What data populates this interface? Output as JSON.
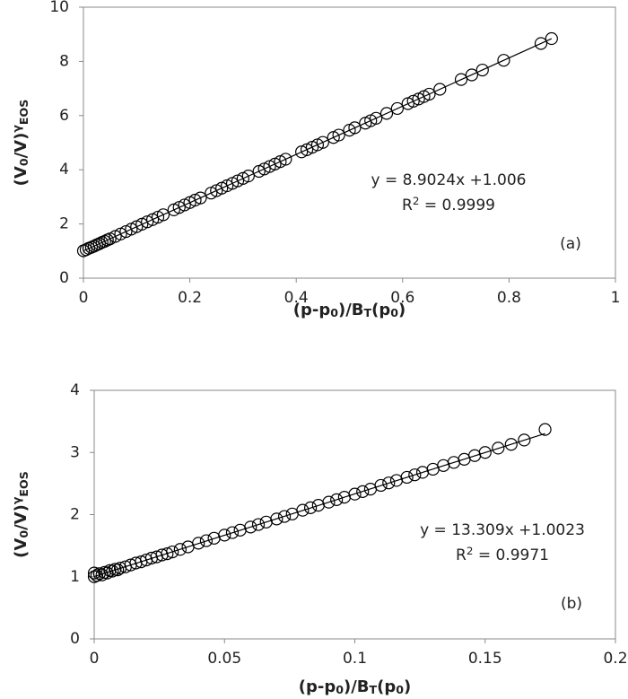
{
  "chart_data": [
    {
      "type": "scatter",
      "x": [
        0,
        0.005,
        0.01,
        0.015,
        0.02,
        0.025,
        0.03,
        0.035,
        0.04,
        0.045,
        0.05,
        0.06,
        0.07,
        0.08,
        0.09,
        0.1,
        0.11,
        0.12,
        0.13,
        0.14,
        0.15,
        0.17,
        0.18,
        0.19,
        0.2,
        0.21,
        0.22,
        0.24,
        0.25,
        0.26,
        0.27,
        0.28,
        0.29,
        0.3,
        0.31,
        0.33,
        0.34,
        0.35,
        0.36,
        0.37,
        0.38,
        0.41,
        0.42,
        0.43,
        0.44,
        0.45,
        0.47,
        0.48,
        0.5,
        0.51,
        0.53,
        0.54,
        0.55,
        0.57,
        0.59,
        0.61,
        0.62,
        0.63,
        0.64,
        0.65,
        0.67,
        0.71,
        0.73,
        0.75,
        0.79,
        0.86,
        0.88
      ],
      "values": [
        1.01,
        1.05,
        1.1,
        1.14,
        1.18,
        1.23,
        1.27,
        1.32,
        1.36,
        1.41,
        1.45,
        1.54,
        1.63,
        1.72,
        1.81,
        1.9,
        1.99,
        2.08,
        2.16,
        2.25,
        2.34,
        2.52,
        2.61,
        2.7,
        2.79,
        2.88,
        2.96,
        3.14,
        3.23,
        3.32,
        3.41,
        3.5,
        3.59,
        3.68,
        3.77,
        3.94,
        4.03,
        4.12,
        4.21,
        4.3,
        4.39,
        4.66,
        4.74,
        4.83,
        4.92,
        5.01,
        5.19,
        5.28,
        5.46,
        5.55,
        5.72,
        5.81,
        5.9,
        6.08,
        6.26,
        6.44,
        6.53,
        6.61,
        6.7,
        6.79,
        6.97,
        7.33,
        7.5,
        7.68,
        8.04,
        8.66,
        8.84
      ],
      "color": "#000000",
      "trendline": {
        "slope": 8.9024,
        "intercept": 1.006,
        "x_range": [
          0,
          0.88
        ]
      },
      "equation": "y = 8.9024x +1.006",
      "r_squared": [
        "R",
        "2",
        " = 0.9999"
      ],
      "panel_label": "(a)",
      "xlabel": [
        "(p-p",
        "0",
        ")/B",
        "T",
        "(p",
        "0",
        ")"
      ],
      "ylabel": [
        "(V",
        "0",
        "/V)",
        "γ",
        "EOS"
      ],
      "xlim": [
        0,
        1
      ],
      "xticks": [
        0,
        0.2,
        0.4,
        0.6,
        0.8,
        1
      ],
      "ylim": [
        0,
        10
      ],
      "yticks": [
        0,
        2,
        4,
        6,
        8,
        10
      ]
    },
    {
      "type": "scatter",
      "x": [
        0,
        0,
        0.001,
        0.002,
        0.003,
        0.004,
        0.005,
        0.006,
        0.007,
        0.008,
        0.009,
        0.01,
        0.012,
        0.014,
        0.016,
        0.018,
        0.02,
        0.022,
        0.024,
        0.026,
        0.028,
        0.03,
        0.033,
        0.036,
        0.04,
        0.043,
        0.046,
        0.05,
        0.053,
        0.056,
        0.06,
        0.063,
        0.066,
        0.07,
        0.073,
        0.076,
        0.08,
        0.083,
        0.086,
        0.09,
        0.093,
        0.096,
        0.1,
        0.103,
        0.106,
        0.11,
        0.113,
        0.116,
        0.12,
        0.123,
        0.126,
        0.13,
        0.134,
        0.138,
        0.142,
        0.146,
        0.15,
        0.155,
        0.16,
        0.165,
        0.173
      ],
      "values": [
        1.0,
        1.06,
        1.02,
        1.05,
        1.03,
        1.07,
        1.06,
        1.1,
        1.09,
        1.12,
        1.11,
        1.14,
        1.16,
        1.19,
        1.22,
        1.24,
        1.27,
        1.3,
        1.32,
        1.35,
        1.37,
        1.4,
        1.44,
        1.48,
        1.54,
        1.58,
        1.62,
        1.67,
        1.71,
        1.75,
        1.8,
        1.84,
        1.88,
        1.93,
        1.97,
        2.01,
        2.07,
        2.11,
        2.15,
        2.2,
        2.24,
        2.28,
        2.33,
        2.37,
        2.41,
        2.47,
        2.51,
        2.55,
        2.6,
        2.64,
        2.68,
        2.73,
        2.79,
        2.84,
        2.89,
        2.95,
        3.0,
        3.07,
        3.13,
        3.2,
        3.37
      ],
      "color": "#000000",
      "trendline": {
        "slope": 13.309,
        "intercept": 1.0023,
        "x_range": [
          0,
          0.173
        ]
      },
      "equation": "y = 13.309x +1.0023",
      "r_squared": [
        "R",
        "2",
        " = 0.9971"
      ],
      "panel_label": "(b)",
      "xlabel": [
        "(p-p",
        "0",
        ")/B",
        "T",
        "(p",
        "0",
        ")"
      ],
      "ylabel": [
        "(V",
        "0",
        "/V)",
        "γ",
        "EOS"
      ],
      "xlim": [
        0,
        0.2
      ],
      "xticks": [
        0,
        0.05,
        0.1,
        0.15,
        0.2
      ],
      "ylim": [
        0,
        4
      ],
      "yticks": [
        0,
        1,
        2,
        3,
        4
      ]
    }
  ]
}
